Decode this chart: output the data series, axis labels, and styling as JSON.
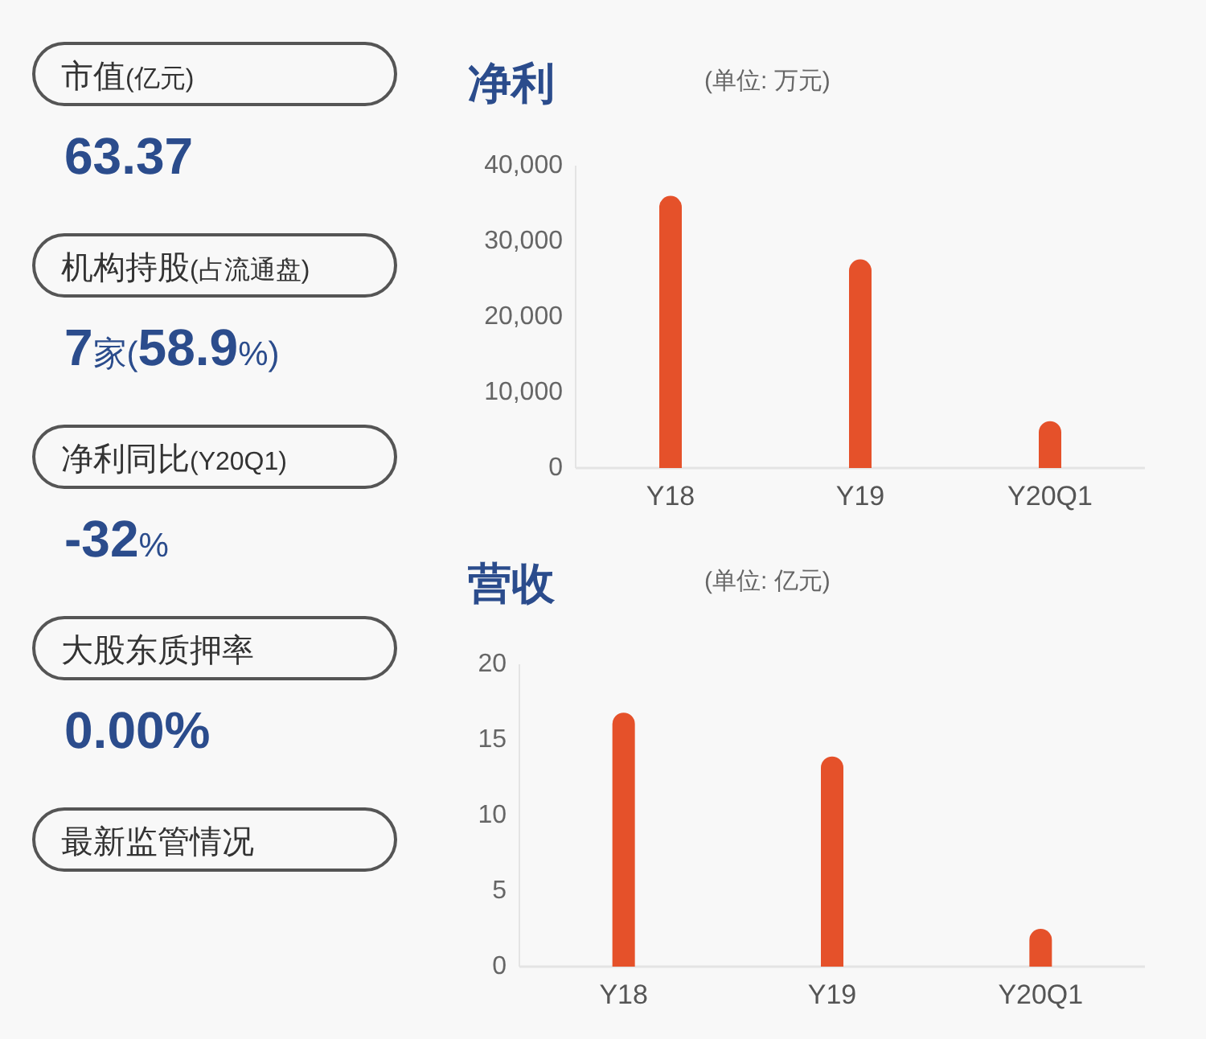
{
  "chart_data": [
    {
      "type": "other",
      "annotations": [
        "市值(亿元)",
        "63.37",
        "机构持股(占流通盘)",
        "**7**家(**58.9**%)",
        "净利同比(Y20Q1)",
        "**-32**%",
        "大股东质押率",
        "0.00%",
        "最新监管情况"
      ]
    },
    {
      "type": "bar",
      "title": "净利",
      "subtitle": "(单位: 万元)",
      "categories": [
        "Y18",
        "Y19",
        "Y20Q1"
      ],
      "values": [
        36000,
        27600,
        6200
      ],
      "color": "#e5512a",
      "ylim": [
        0,
        40000
      ],
      "yticks": [
        0,
        {
          "value": 10000,
          "label": "10,000"
        },
        {
          "value": 20000,
          "label": "20,000"
        },
        {
          "value": 30000,
          "label": "30,000"
        },
        {
          "value": 40000,
          "label": "40,000"
        }
      ]
    },
    {
      "type": "bar",
      "title": "营收",
      "subtitle": "(单位: 亿元)",
      "categories": [
        "Y18",
        "Y19",
        "Y20Q1"
      ],
      "values": [
        16.8,
        13.9,
        2.5
      ],
      "color": "#e5512a",
      "ylim": [
        0,
        20
      ],
      "yticks": [
        0,
        5,
        10,
        15,
        20
      ]
    }
  ]
}
